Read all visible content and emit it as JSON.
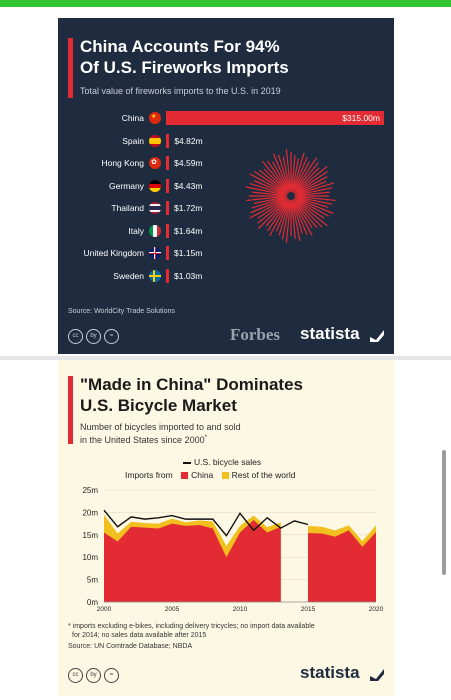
{
  "colors": {
    "topbar": "#31c631",
    "panel1_bg": "#1f2c3f",
    "panel2_bg": "#fdf8e4",
    "accent_red": "#e32b33",
    "accent_yellow": "#f2c01e"
  },
  "panel1": {
    "title_line1": "China Accounts For 94%",
    "title_line2": "Of U.S. Fireworks Imports",
    "subtitle": "Total value of fireworks imports to the U.S. in 2019",
    "source": "Source: WorldCity Trade Solutions",
    "forbes": "Forbes",
    "statista": "statista",
    "cc_icons": [
      "cc",
      "by",
      "="
    ]
  },
  "panel2": {
    "title_line1": "\"Made in China\" Dominates",
    "title_line2": "U.S. Bicycle Market",
    "subtitle_line1": "Number of bicycles imported to and sold",
    "subtitle_line2": "in the United States since 2000",
    "subtitle_mark": "*",
    "legend_sales": "U.S. bicycle sales",
    "legend_imports_from": "Imports from",
    "legend_china": "China",
    "legend_rest": "Rest of the world",
    "footnote1": "* imports excluding e-bikes, including delivery tricycles; no import data available",
    "footnote2": "for 2014; no sales data available after 2015",
    "source": "Source: UN Comtrade Database; NBDA",
    "statista": "statista",
    "cc_icons": [
      "cc",
      "by",
      "="
    ]
  },
  "chart_data": [
    {
      "type": "bar",
      "title": "China Accounts For 94% Of U.S. Fireworks Imports",
      "subtitle": "Total value of fireworks imports to the U.S. in 2019",
      "categories": [
        "China",
        "Spain",
        "Hong Kong",
        "Germany",
        "Thailand",
        "Italy",
        "United Kingdom",
        "Sweden"
      ],
      "values": [
        315.0,
        4.82,
        4.59,
        4.43,
        1.72,
        1.64,
        1.15,
        1.03
      ],
      "labels": [
        "$315.00m",
        "$4.82m",
        "$4.59m",
        "$4.43m",
        "$1.72m",
        "$1.64m",
        "$1.15m",
        "$1.03m"
      ],
      "flags": [
        "china-flag-icon",
        "spain-flag-icon",
        "hong-kong-flag-icon",
        "germany-flag-icon",
        "thailand-flag-icon",
        "italy-flag-icon",
        "uk-flag-icon",
        "sweden-flag-icon"
      ],
      "unit": "US$ million",
      "orientation": "horizontal"
    },
    {
      "type": "area",
      "title": "\"Made in China\" Dominates U.S. Bicycle Market",
      "x": [
        2000,
        2001,
        2002,
        2003,
        2004,
        2005,
        2006,
        2007,
        2008,
        2009,
        2010,
        2011,
        2012,
        2013,
        2014,
        2015,
        2016,
        2017,
        2018,
        2019,
        2020
      ],
      "xticks": [
        2000,
        2005,
        2010,
        2015,
        2020
      ],
      "yticks": [
        "0m",
        "5m",
        "10m",
        "15m",
        "20m",
        "25m"
      ],
      "ytick_values": [
        0,
        5,
        10,
        15,
        20,
        25
      ],
      "ylim": [
        0,
        25
      ],
      "series": [
        {
          "name": "China",
          "stack": "imports",
          "values": [
            15.5,
            13.5,
            16.8,
            16.6,
            16.4,
            17.5,
            17.0,
            17.2,
            16.4,
            10.0,
            15.5,
            18.3,
            15.5,
            16.8,
            null,
            15.4,
            15.3,
            14.6,
            16.0,
            12.3,
            15.6
          ]
        },
        {
          "name": "Rest of the world",
          "stack": "imports",
          "values": [
            4.0,
            1.8,
            1.1,
            1.0,
            1.1,
            1.1,
            0.8,
            1.0,
            1.6,
            2.5,
            1.5,
            1.0,
            1.2,
            1.0,
            null,
            1.6,
            1.5,
            1.4,
            1.1,
            1.3,
            1.5
          ]
        },
        {
          "name": "U.S. bicycle sales",
          "values": [
            20.5,
            16.8,
            19.0,
            18.5,
            18.8,
            19.3,
            18.5,
            18.5,
            18.5,
            14.8,
            19.8,
            16.0,
            18.8,
            16.5,
            18.1,
            17.3,
            null,
            null,
            null,
            null,
            null
          ]
        }
      ]
    }
  ]
}
